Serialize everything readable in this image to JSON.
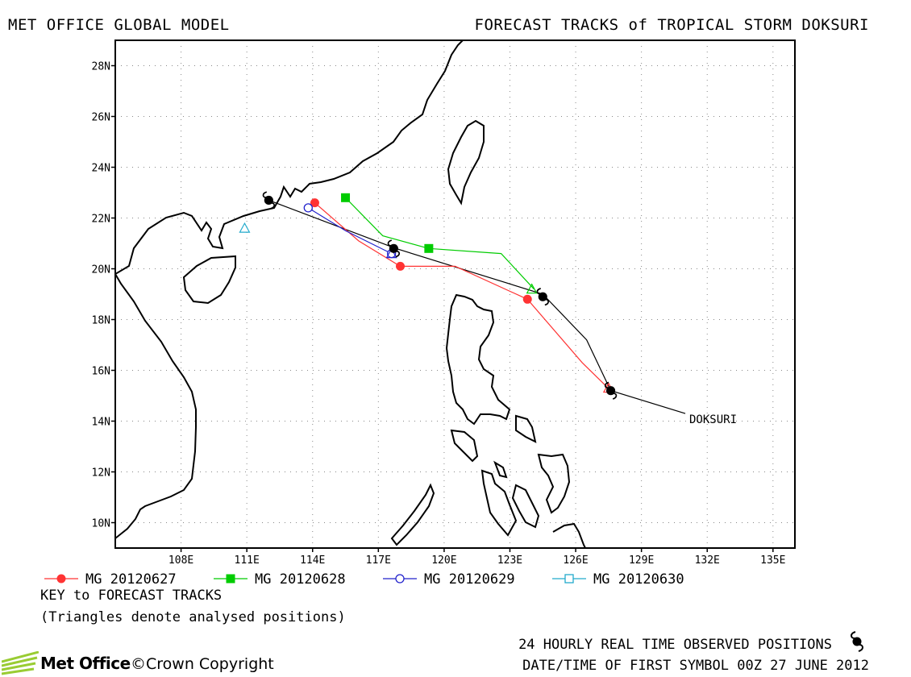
{
  "header": {
    "left_title": "MET OFFICE GLOBAL MODEL",
    "right_title": "FORECAST TRACKS of TROPICAL STORM DOKSURI"
  },
  "axes": {
    "lat_labels": [
      "10N",
      "12N",
      "14N",
      "16N",
      "18N",
      "20N",
      "22N",
      "24N",
      "26N",
      "28N"
    ],
    "lat_values": [
      10,
      12,
      14,
      16,
      18,
      20,
      22,
      24,
      26,
      28
    ],
    "lon_labels": [
      "108E",
      "111E",
      "114E",
      "117E",
      "120E",
      "123E",
      "126E",
      "129E",
      "132E",
      "135E"
    ],
    "lon_values": [
      108,
      111,
      114,
      117,
      120,
      123,
      126,
      129,
      132,
      135
    ],
    "lon_range": [
      105,
      136
    ],
    "lat_range": [
      9,
      29
    ],
    "grid": "dotted"
  },
  "storm_label": "DOKSURI",
  "observed_track": {
    "name": "observed",
    "color": "#000000",
    "points": [
      [
        131.0,
        14.3
      ],
      [
        127.6,
        15.2
      ],
      [
        126.5,
        17.2
      ],
      [
        124.5,
        19.0
      ],
      [
        117.8,
        20.8
      ],
      [
        112.0,
        22.7
      ]
    ],
    "symbol_points": [
      [
        127.6,
        15.2
      ],
      [
        124.5,
        18.9
      ],
      [
        117.7,
        20.8
      ],
      [
        112.0,
        22.7
      ]
    ]
  },
  "forecast_tracks": [
    {
      "name": "MG 20120627",
      "color": "#ff3333",
      "marker": "filled-circle",
      "points": [
        [
          127.6,
          15.2
        ],
        [
          126.3,
          16.3
        ],
        [
          123.8,
          18.8
        ],
        [
          120.5,
          20.1
        ],
        [
          118.0,
          20.1
        ],
        [
          116.1,
          21.1
        ],
        [
          114.1,
          22.6
        ]
      ],
      "marker_points": [
        [
          123.8,
          18.8
        ],
        [
          118.0,
          20.1
        ],
        [
          114.1,
          22.6
        ]
      ]
    },
    {
      "name": "MG 20120628",
      "color": "#00cc00",
      "marker": "filled-square",
      "points": [
        [
          124.1,
          19.2
        ],
        [
          122.6,
          20.6
        ],
        [
          119.3,
          20.8
        ],
        [
          117.2,
          21.3
        ],
        [
          115.5,
          22.8
        ]
      ],
      "marker_points": [
        [
          119.3,
          20.8
        ],
        [
          115.5,
          22.8
        ]
      ]
    },
    {
      "name": "MG 20120629",
      "color": "#2222cc",
      "marker": "open-circle",
      "points": [
        [
          117.6,
          20.6
        ],
        [
          115.5,
          21.5
        ],
        [
          113.8,
          22.4
        ]
      ],
      "marker_points": [
        [
          117.6,
          20.6
        ],
        [
          113.8,
          22.4
        ]
      ]
    },
    {
      "name": "MG 20120630",
      "color": "#22aacc",
      "marker": "open-square",
      "points": [],
      "marker_points": []
    }
  ],
  "analysed_positions": [
    {
      "color": "#ff3333",
      "point": [
        127.5,
        15.3
      ]
    },
    {
      "color": "#00cc00",
      "point": [
        124.0,
        19.2
      ]
    },
    {
      "color": "#2222cc",
      "point": [
        117.6,
        20.6
      ]
    },
    {
      "color": "#22aacc",
      "point": [
        110.9,
        21.6
      ]
    }
  ],
  "footer": {
    "key_title": "KEY to FORECAST TRACKS",
    "key_note": "(Triangles denote analysed positions)",
    "observed_text": "24 HOURLY REAL TIME OBSERVED POSITIONS",
    "datetime_text": "DATE/TIME OF FIRST SYMBOL 00Z 27 JUNE 2012",
    "brand": "Met Office",
    "copyright": "©Crown Copyright"
  }
}
